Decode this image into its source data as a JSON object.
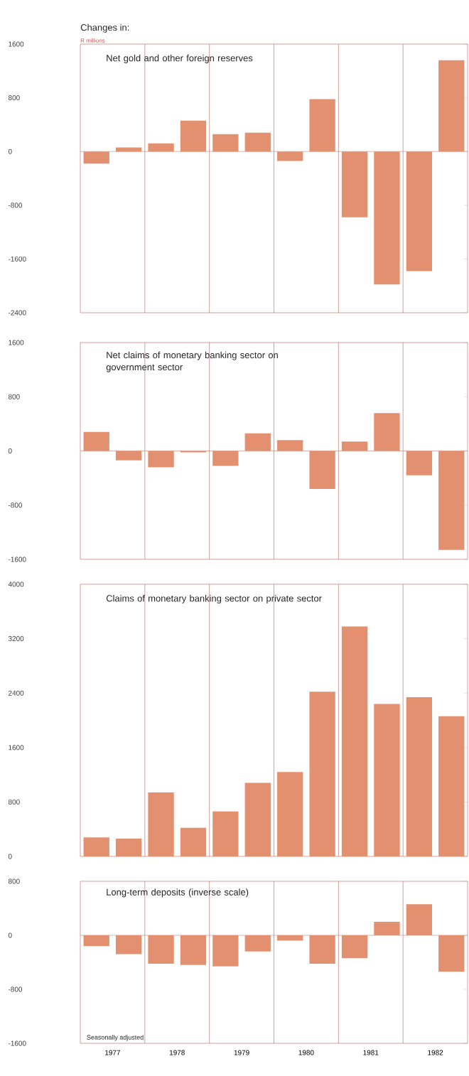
{
  "chart_data": [
    {
      "type": "bar",
      "title": "Net gold and other foreign reserves",
      "ylabel": "R millions",
      "annotations": [
        "Changes in:"
      ],
      "color": "#e39070",
      "x": [
        1977.25,
        1977.75,
        1978.25,
        1978.75,
        1979.25,
        1979.75,
        1980.25,
        1980.75,
        1981.25,
        1981.75,
        1982.25,
        1982.75
      ],
      "values": [
        -180,
        60,
        120,
        460,
        260,
        280,
        -140,
        780,
        -980,
        -1980,
        -1780,
        1360
      ],
      "xlim": [
        1977,
        1983
      ],
      "ylim": [
        -2400,
        1600
      ],
      "yticks": [
        -2400,
        -1600,
        -800,
        0,
        800,
        1600
      ],
      "tick_labels": "y",
      "ref_lines": [
        {
          "axis": "x",
          "value": 1978,
          "color": "#b5605a"
        },
        {
          "axis": "x",
          "value": 1979,
          "color": "#b5605a"
        },
        {
          "axis": "x",
          "value": 1980,
          "color": "#b5605a"
        },
        {
          "axis": "x",
          "value": 1981,
          "color": "#b5605a"
        },
        {
          "axis": "x",
          "value": 1982,
          "color": "#b5605a"
        },
        {
          "axis": "y",
          "value": 0,
          "color": "#c98070"
        }
      ]
    },
    {
      "type": "bar",
      "title": "Net claims of monetary banking sector on government sector",
      "color": "#e39070",
      "x": [
        1977.25,
        1977.75,
        1978.25,
        1978.75,
        1979.25,
        1979.75,
        1980.25,
        1980.75,
        1981.25,
        1981.75,
        1982.25,
        1982.75
      ],
      "values": [
        280,
        -140,
        -240,
        -20,
        -220,
        260,
        160,
        -560,
        140,
        560,
        -360,
        -1460
      ],
      "xlim": [
        1977,
        1983
      ],
      "ylim": [
        -1600,
        1600
      ],
      "yticks": [
        -1600,
        -800,
        0,
        800,
        1600
      ],
      "tick_labels": "y",
      "ref_lines": [
        {
          "axis": "x",
          "value": 1978,
          "color": "#b5605a"
        },
        {
          "axis": "x",
          "value": 1979,
          "color": "#b5605a"
        },
        {
          "axis": "x",
          "value": 1980,
          "color": "#b5605a"
        },
        {
          "axis": "x",
          "value": 1981,
          "color": "#b5605a"
        },
        {
          "axis": "x",
          "value": 1982,
          "color": "#b5605a"
        },
        {
          "axis": "y",
          "value": 0,
          "color": "#c98070"
        }
      ]
    },
    {
      "type": "bar",
      "title": "Claims of monetary banking sector on private sector",
      "color": "#e39070",
      "x": [
        1977.25,
        1977.75,
        1978.25,
        1978.75,
        1979.25,
        1979.75,
        1980.25,
        1980.75,
        1981.25,
        1981.75,
        1982.25,
        1982.75
      ],
      "values": [
        280,
        260,
        940,
        420,
        660,
        1080,
        1240,
        2420,
        3380,
        2240,
        2340,
        2060
      ],
      "xlim": [
        1977,
        1983
      ],
      "ylim": [
        0,
        4000
      ],
      "yticks": [
        0,
        800,
        1600,
        2400,
        3200,
        4000
      ],
      "tick_labels": "y",
      "ref_lines": [
        {
          "axis": "x",
          "value": 1978,
          "color": "#b5605a"
        },
        {
          "axis": "x",
          "value": 1979,
          "color": "#b5605a"
        },
        {
          "axis": "x",
          "value": 1980,
          "color": "#b5605a"
        },
        {
          "axis": "x",
          "value": 1981,
          "color": "#b5605a"
        },
        {
          "axis": "x",
          "value": 1982,
          "color": "#b5605a"
        }
      ]
    },
    {
      "type": "bar",
      "title": "Long-term deposits  (inverse scale)",
      "annotations": [
        "Seasonally adjusted"
      ],
      "color": "#e39070",
      "x": [
        1977.25,
        1977.75,
        1978.25,
        1978.75,
        1979.25,
        1979.75,
        1980.25,
        1980.75,
        1981.25,
        1981.75,
        1982.25,
        1982.75
      ],
      "values": [
        -160,
        -280,
        -420,
        -440,
        -460,
        -240,
        -80,
        -420,
        -340,
        200,
        460,
        -540
      ],
      "xlim": [
        1977,
        1983
      ],
      "xticks": [
        {
          "value": 1977.5,
          "label": "1977"
        },
        {
          "value": 1978.5,
          "label": "1978"
        },
        {
          "value": 1979.5,
          "label": "1979"
        },
        {
          "value": 1980.5,
          "label": "1980"
        },
        {
          "value": 1981.5,
          "label": "1981"
        },
        {
          "value": 1982.5,
          "label": "1982"
        }
      ],
      "ylim": [
        -1600,
        800
      ],
      "yticks": [
        -1600,
        -800,
        0,
        800
      ],
      "ref_lines": [
        {
          "axis": "x",
          "value": 1978,
          "color": "#b5605a"
        },
        {
          "axis": "x",
          "value": 1979,
          "color": "#b5605a"
        },
        {
          "axis": "x",
          "value": 1980,
          "color": "#b5605a"
        },
        {
          "axis": "x",
          "value": 1981,
          "color": "#b5605a"
        },
        {
          "axis": "x",
          "value": 1982,
          "color": "#b5605a"
        },
        {
          "axis": "y",
          "value": 0,
          "color": "#c98070"
        }
      ]
    }
  ]
}
